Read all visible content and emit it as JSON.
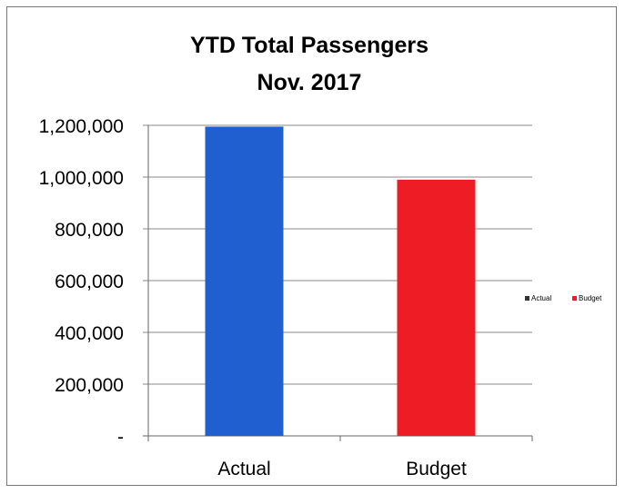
{
  "chart_data": {
    "type": "bar",
    "title_lines": [
      "YTD Total Passengers",
      "Nov. 2017"
    ],
    "categories": [
      "Actual",
      "Budget"
    ],
    "values": [
      1195000,
      990000
    ],
    "colors": [
      "#1f5fd0",
      "#ee1c24"
    ],
    "ylim": [
      0,
      1200000
    ],
    "y_ticks": [
      0,
      200000,
      400000,
      600000,
      800000,
      1000000,
      1200000
    ],
    "y_tick_labels": [
      "-",
      "200,000",
      "400,000",
      "600,000",
      "800,000",
      "1,000,000",
      "1,200,000"
    ],
    "grid": true,
    "legend": {
      "placement": "right",
      "entries": [
        {
          "label": "Actual",
          "color": "#333333"
        },
        {
          "label": "Budget",
          "color": "#ee1c24"
        }
      ]
    }
  }
}
